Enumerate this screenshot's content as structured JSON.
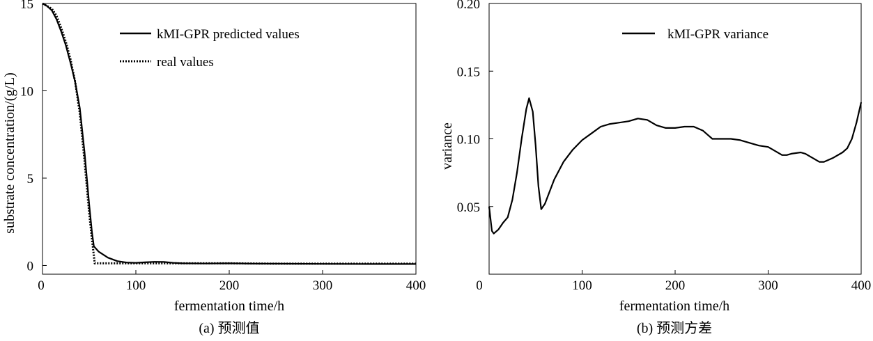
{
  "chart_data": [
    {
      "type": "line",
      "caption": "(a) 预测值",
      "xlabel": "fermentation time/h",
      "ylabel": "substrate concentration/(g/L)",
      "xlim": [
        0,
        400
      ],
      "ylim": [
        -0.5,
        15
      ],
      "xticks": [
        "0",
        "100",
        "200",
        "300",
        "400"
      ],
      "yticks": [
        "0",
        "5",
        "10",
        "15"
      ],
      "grid": false,
      "legend": "top-center",
      "series": [
        {
          "name": "kMI-GPR predicted values",
          "style": "solid",
          "points": [
            [
              0,
              15
            ],
            [
              5,
              14.85
            ],
            [
              10,
              14.6
            ],
            [
              15,
              14.1
            ],
            [
              20,
              13.4
            ],
            [
              25,
              12.6
            ],
            [
              30,
              11.6
            ],
            [
              35,
              10.5
            ],
            [
              40,
              9.0
            ],
            [
              45,
              6.5
            ],
            [
              50,
              3.5
            ],
            [
              53,
              1.9
            ],
            [
              55,
              1.1
            ],
            [
              60,
              0.8
            ],
            [
              70,
              0.45
            ],
            [
              80,
              0.25
            ],
            [
              90,
              0.17
            ],
            [
              100,
              0.15
            ],
            [
              110,
              0.18
            ],
            [
              120,
              0.21
            ],
            [
              130,
              0.2
            ],
            [
              140,
              0.15
            ],
            [
              150,
              0.12
            ],
            [
              175,
              0.11
            ],
            [
              200,
              0.12
            ],
            [
              225,
              0.1
            ],
            [
              250,
              0.1
            ],
            [
              300,
              0.09
            ],
            [
              350,
              0.08
            ],
            [
              400,
              0.08
            ]
          ]
        },
        {
          "name": "real values",
          "style": "dotted",
          "points": [
            [
              0,
              15
            ],
            [
              5,
              14.85
            ],
            [
              10,
              14.7
            ],
            [
              15,
              14.3
            ],
            [
              20,
              13.6
            ],
            [
              25,
              12.8
            ],
            [
              30,
              11.8
            ],
            [
              35,
              10.5
            ],
            [
              40,
              8.7
            ],
            [
              45,
              6.0
            ],
            [
              50,
              3.0
            ],
            [
              53,
              1.5
            ],
            [
              56,
              0.12
            ],
            [
              60,
              0.12
            ],
            [
              80,
              0.12
            ],
            [
              100,
              0.12
            ],
            [
              150,
              0.12
            ],
            [
              200,
              0.12
            ],
            [
              250,
              0.1
            ],
            [
              300,
              0.1
            ],
            [
              350,
              0.1
            ],
            [
              400,
              0.1
            ]
          ]
        }
      ]
    },
    {
      "type": "line",
      "caption": "(b) 预测方差",
      "xlabel": "fermentation time/h",
      "ylabel": "variance",
      "xlim": [
        0,
        400
      ],
      "ylim": [
        0,
        0.2
      ],
      "xticks": [
        "0",
        "100",
        "200",
        "300",
        "400"
      ],
      "yticks": [
        "0.05",
        "0.10",
        "0.15",
        "0.20"
      ],
      "grid": false,
      "legend": "top-center",
      "series": [
        {
          "name": "kMI-GPR variance",
          "style": "solid",
          "points": [
            [
              0,
              0.05
            ],
            [
              3,
              0.032
            ],
            [
              5,
              0.03
            ],
            [
              10,
              0.033
            ],
            [
              15,
              0.038
            ],
            [
              20,
              0.042
            ],
            [
              25,
              0.055
            ],
            [
              30,
              0.075
            ],
            [
              35,
              0.1
            ],
            [
              40,
              0.122
            ],
            [
              43,
              0.13
            ],
            [
              47,
              0.12
            ],
            [
              50,
              0.095
            ],
            [
              53,
              0.065
            ],
            [
              56,
              0.048
            ],
            [
              60,
              0.052
            ],
            [
              70,
              0.07
            ],
            [
              80,
              0.083
            ],
            [
              90,
              0.092
            ],
            [
              100,
              0.099
            ],
            [
              110,
              0.104
            ],
            [
              120,
              0.109
            ],
            [
              130,
              0.111
            ],
            [
              140,
              0.112
            ],
            [
              150,
              0.113
            ],
            [
              160,
              0.115
            ],
            [
              170,
              0.114
            ],
            [
              180,
              0.11
            ],
            [
              190,
              0.108
            ],
            [
              200,
              0.108
            ],
            [
              210,
              0.109
            ],
            [
              220,
              0.109
            ],
            [
              230,
              0.106
            ],
            [
              240,
              0.1
            ],
            [
              250,
              0.1
            ],
            [
              260,
              0.1
            ],
            [
              270,
              0.099
            ],
            [
              280,
              0.097
            ],
            [
              290,
              0.095
            ],
            [
              300,
              0.094
            ],
            [
              305,
              0.092
            ],
            [
              315,
              0.088
            ],
            [
              320,
              0.088
            ],
            [
              325,
              0.089
            ],
            [
              335,
              0.09
            ],
            [
              340,
              0.089
            ],
            [
              350,
              0.085
            ],
            [
              355,
              0.083
            ],
            [
              360,
              0.083
            ],
            [
              370,
              0.086
            ],
            [
              380,
              0.09
            ],
            [
              385,
              0.093
            ],
            [
              390,
              0.1
            ],
            [
              395,
              0.112
            ],
            [
              400,
              0.127
            ]
          ]
        }
      ]
    }
  ]
}
